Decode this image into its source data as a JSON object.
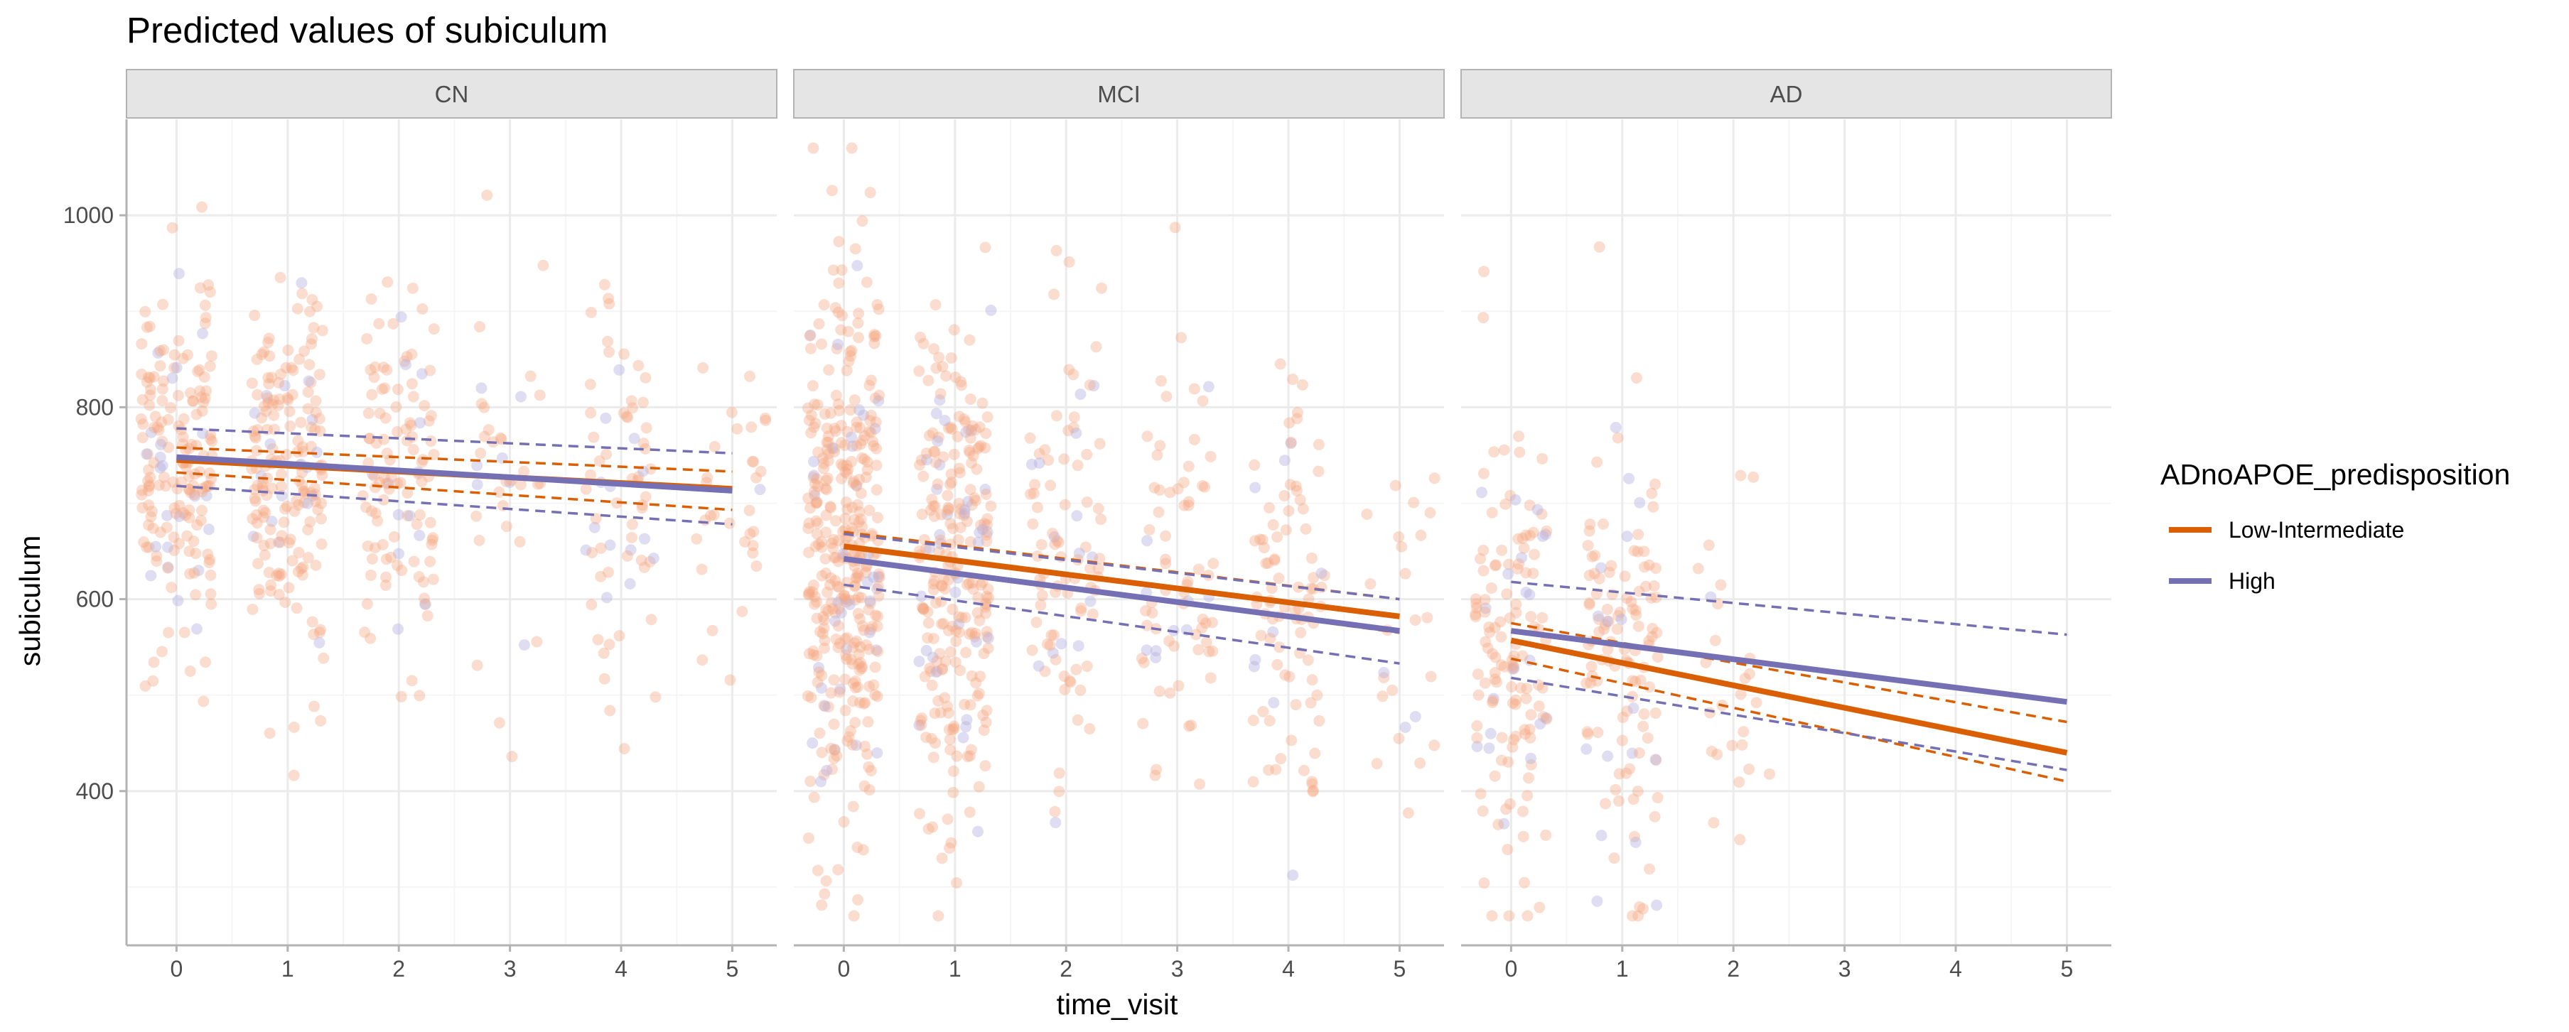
{
  "chart_data": {
    "type": "line",
    "title": "Predicted values of subiculum",
    "xlabel": "time_visit",
    "ylabel": "subiculum",
    "x_ticks": [
      0,
      1,
      2,
      3,
      4,
      5
    ],
    "y_ticks": [
      400,
      600,
      800,
      1000
    ],
    "xlim": [
      -0.45,
      5.4
    ],
    "ylim": [
      240,
      1100
    ],
    "grid": true,
    "legend": {
      "title": "ADnoAPOE_predisposition",
      "position": "right",
      "entries": [
        "Low-Intermediate",
        "High"
      ]
    },
    "colors": {
      "Low-Intermediate": "#d95f02",
      "High": "#7570b3",
      "points": "#f4a582",
      "strip_bg": "#e5e5e5",
      "grid_major": "#ebebeb"
    },
    "panels": [
      {
        "name": "CN",
        "series": [
          {
            "name": "Low-Intermediate",
            "x": [
              0,
              5
            ],
            "y": [
              745,
              715
            ],
            "ci_low": [
              732,
              693
            ],
            "ci_high": [
              758,
              733
            ]
          },
          {
            "name": "High",
            "x": [
              0,
              5
            ],
            "y": [
              748,
              713
            ],
            "ci_low": [
              718,
              678
            ],
            "ci_high": [
              778,
              752
            ]
          }
        ],
        "scatter_summary": {
          "n_approx": 620,
          "x_weights": [
            0.34,
            0.3,
            0.18,
            0.05,
            0.09,
            0.04
          ],
          "y_mean": 745,
          "y_sd": 95
        }
      },
      {
        "name": "MCI",
        "series": [
          {
            "name": "Low-Intermediate",
            "x": [
              0,
              5
            ],
            "y": [
              655,
              582
            ],
            "ci_low": [
              643,
              565
            ],
            "ci_high": [
              670,
              600
            ]
          },
          {
            "name": "High",
            "x": [
              0,
              5
            ],
            "y": [
              642,
              567
            ],
            "ci_low": [
              615,
              533
            ],
            "ci_high": [
              668,
              600
            ]
          }
        ],
        "scatter_summary": {
          "n_approx": 920,
          "x_weights": [
            0.36,
            0.33,
            0.12,
            0.07,
            0.09,
            0.03
          ],
          "y_mean": 640,
          "y_sd": 135
        }
      },
      {
        "name": "AD",
        "series": [
          {
            "name": "Low-Intermediate",
            "x": [
              0,
              5
            ],
            "y": [
              557,
              440
            ],
            "ci_low": [
              538,
              410
            ],
            "ci_high": [
              575,
              472
            ]
          },
          {
            "name": "High",
            "x": [
              0,
              5
            ],
            "y": [
              567,
              493
            ],
            "ci_low": [
              518,
              422
            ],
            "ci_high": [
              618,
              563
            ]
          }
        ],
        "scatter_summary": {
          "n_approx": 290,
          "x_weights": [
            0.46,
            0.46,
            0.08,
            0,
            0,
            0
          ],
          "y_mean": 545,
          "y_sd": 120
        }
      }
    ]
  }
}
